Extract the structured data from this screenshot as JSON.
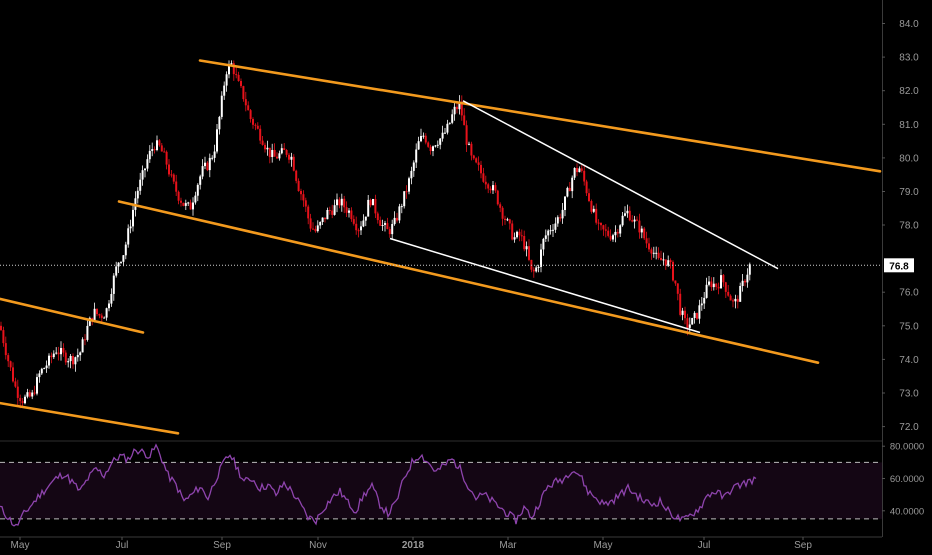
{
  "colors": {
    "background": "#000000",
    "up_candle": "#ffffff",
    "down_candle": "#e8121b",
    "channel_lines": "#f39a1e",
    "wedge_lines": "#ffffff",
    "rsi_line": "#8e44ad",
    "rsi_band_fill": "#140614",
    "axis_text": "#9a9a9a",
    "price_badge_bg": "#ffffff",
    "price_badge_text": "#000000"
  },
  "chart_data": [
    {
      "type": "candlestick",
      "panel": "price",
      "x_labels": [
        "May",
        "Jul",
        "Sep",
        "Nov",
        "2018",
        "Mar",
        "May",
        "Jul",
        "Sep"
      ],
      "y_ticks": [
        "72.0",
        "73.0",
        "74.0",
        "75.0",
        "76.0",
        "77.0",
        "78.0",
        "79.0",
        "80.0",
        "81.0",
        "82.0",
        "83.0",
        "84.0"
      ],
      "ylim": [
        71.6,
        84.7
      ],
      "last_price": "76.8",
      "price_path": [
        [
          0,
          75.0
        ],
        [
          8,
          74.0
        ],
        [
          16,
          73.1
        ],
        [
          22,
          72.8
        ],
        [
          32,
          72.9
        ],
        [
          40,
          73.6
        ],
        [
          48,
          73.9
        ],
        [
          56,
          74.3
        ],
        [
          64,
          74.1
        ],
        [
          72,
          74.0
        ],
        [
          80,
          74.2
        ],
        [
          88,
          75.0
        ],
        [
          94,
          75.4
        ],
        [
          100,
          75.3
        ],
        [
          106,
          75.4
        ],
        [
          112,
          76.2
        ],
        [
          118,
          76.9
        ],
        [
          124,
          77.2
        ],
        [
          130,
          78.0
        ],
        [
          136,
          78.9
        ],
        [
          142,
          79.4
        ],
        [
          148,
          80.0
        ],
        [
          154,
          80.4
        ],
        [
          160,
          80.3
        ],
        [
          166,
          79.9
        ],
        [
          172,
          79.3
        ],
        [
          178,
          78.9
        ],
        [
          184,
          78.6
        ],
        [
          190,
          78.5
        ],
        [
          196,
          79.1
        ],
        [
          202,
          79.6
        ],
        [
          208,
          79.8
        ],
        [
          214,
          80.2
        ],
        [
          220,
          81.3
        ],
        [
          226,
          82.6
        ],
        [
          232,
          82.8
        ],
        [
          238,
          82.2
        ],
        [
          244,
          81.8
        ],
        [
          250,
          81.2
        ],
        [
          256,
          80.9
        ],
        [
          262,
          80.6
        ],
        [
          268,
          80.2
        ],
        [
          274,
          80.0
        ],
        [
          280,
          80.1
        ],
        [
          286,
          80.2
        ],
        [
          292,
          80.0
        ],
        [
          298,
          79.2
        ],
        [
          304,
          78.7
        ],
        [
          310,
          78.0
        ],
        [
          316,
          77.8
        ],
        [
          322,
          78.1
        ],
        [
          328,
          78.4
        ],
        [
          334,
          78.5
        ],
        [
          340,
          78.7
        ],
        [
          346,
          78.5
        ],
        [
          352,
          78.3
        ],
        [
          358,
          77.9
        ],
        [
          364,
          78.2
        ],
        [
          370,
          78.8
        ],
        [
          376,
          78.4
        ],
        [
          382,
          78.0
        ],
        [
          388,
          77.8
        ],
        [
          394,
          78.0
        ],
        [
          400,
          78.5
        ],
        [
          406,
          79.0
        ],
        [
          412,
          79.6
        ],
        [
          418,
          80.4
        ],
        [
          424,
          80.7
        ],
        [
          430,
          80.3
        ],
        [
          436,
          80.5
        ],
        [
          442,
          80.6
        ],
        [
          448,
          80.9
        ],
        [
          454,
          81.4
        ],
        [
          460,
          81.6
        ],
        [
          466,
          80.6
        ],
        [
          472,
          79.9
        ],
        [
          478,
          79.7
        ],
        [
          484,
          79.4
        ],
        [
          490,
          79.2
        ],
        [
          496,
          78.9
        ],
        [
          502,
          78.4
        ],
        [
          508,
          78.0
        ],
        [
          514,
          77.6
        ],
        [
          520,
          77.7
        ],
        [
          526,
          77.3
        ],
        [
          532,
          76.5
        ],
        [
          538,
          76.8
        ],
        [
          544,
          77.6
        ],
        [
          550,
          77.9
        ],
        [
          556,
          78.1
        ],
        [
          562,
          78.4
        ],
        [
          568,
          79.0
        ],
        [
          574,
          79.6
        ],
        [
          580,
          79.7
        ],
        [
          586,
          79.1
        ],
        [
          592,
          78.5
        ],
        [
          598,
          77.9
        ],
        [
          604,
          77.8
        ],
        [
          610,
          77.7
        ],
        [
          616,
          77.8
        ],
        [
          622,
          78.2
        ],
        [
          628,
          78.4
        ],
        [
          634,
          78.1
        ],
        [
          640,
          77.9
        ],
        [
          646,
          77.5
        ],
        [
          652,
          77.3
        ],
        [
          658,
          76.9
        ],
        [
          664,
          77.0
        ],
        [
          670,
          76.8
        ],
        [
          676,
          76.2
        ],
        [
          680,
          75.5
        ],
        [
          686,
          75.0
        ],
        [
          692,
          75.1
        ],
        [
          698,
          75.4
        ],
        [
          704,
          75.9
        ],
        [
          710,
          76.3
        ],
        [
          716,
          76.2
        ],
        [
          722,
          76.4
        ],
        [
          728,
          76.0
        ],
        [
          734,
          75.6
        ],
        [
          740,
          76.0
        ],
        [
          746,
          76.5
        ],
        [
          750,
          76.8
        ]
      ],
      "channel_lines": [
        [
          [
            200,
            82.9
          ],
          [
            880,
            79.6
          ]
        ],
        [
          [
            119,
            78.7
          ],
          [
            818,
            73.9
          ]
        ],
        [
          [
            0,
            75.8
          ],
          [
            143,
            74.8
          ]
        ],
        [
          [
            0,
            72.7
          ],
          [
            178,
            71.8
          ]
        ]
      ],
      "wedge_lines": [
        [
          [
            463,
            81.7
          ],
          [
            778,
            76.7
          ]
        ],
        [
          [
            390,
            77.6
          ],
          [
            700,
            74.8
          ]
        ]
      ]
    },
    {
      "type": "line",
      "panel": "rsi",
      "y_ticks": [
        "40.0000",
        "60.0000",
        "80.0000"
      ],
      "ylim": [
        25,
        82
      ],
      "band": [
        35,
        70
      ],
      "rsi_path": [
        [
          0,
          42
        ],
        [
          8,
          36
        ],
        [
          16,
          30
        ],
        [
          24,
          38
        ],
        [
          32,
          44
        ],
        [
          40,
          50
        ],
        [
          48,
          55
        ],
        [
          56,
          60
        ],
        [
          64,
          63
        ],
        [
          72,
          58
        ],
        [
          80,
          52
        ],
        [
          88,
          60
        ],
        [
          96,
          66
        ],
        [
          104,
          62
        ],
        [
          112,
          70
        ],
        [
          120,
          74
        ],
        [
          128,
          72
        ],
        [
          136,
          78
        ],
        [
          144,
          76
        ],
        [
          150,
          74
        ],
        [
          156,
          80
        ],
        [
          162,
          72
        ],
        [
          168,
          62
        ],
        [
          176,
          56
        ],
        [
          184,
          46
        ],
        [
          192,
          50
        ],
        [
          200,
          55
        ],
        [
          208,
          48
        ],
        [
          216,
          60
        ],
        [
          224,
          70
        ],
        [
          230,
          75
        ],
        [
          236,
          68
        ],
        [
          244,
          58
        ],
        [
          252,
          60
        ],
        [
          260,
          54
        ],
        [
          268,
          56
        ],
        [
          276,
          50
        ],
        [
          284,
          57
        ],
        [
          292,
          52
        ],
        [
          300,
          44
        ],
        [
          308,
          36
        ],
        [
          316,
          34
        ],
        [
          324,
          42
        ],
        [
          332,
          48
        ],
        [
          340,
          52
        ],
        [
          348,
          45
        ],
        [
          356,
          40
        ],
        [
          364,
          50
        ],
        [
          372,
          55
        ],
        [
          380,
          44
        ],
        [
          388,
          38
        ],
        [
          396,
          45
        ],
        [
          404,
          60
        ],
        [
          412,
          70
        ],
        [
          420,
          75
        ],
        [
          428,
          70
        ],
        [
          436,
          64
        ],
        [
          444,
          68
        ],
        [
          452,
          72
        ],
        [
          460,
          66
        ],
        [
          468,
          56
        ],
        [
          476,
          48
        ],
        [
          484,
          50
        ],
        [
          492,
          46
        ],
        [
          500,
          42
        ],
        [
          508,
          38
        ],
        [
          516,
          34
        ],
        [
          524,
          42
        ],
        [
          532,
          36
        ],
        [
          540,
          46
        ],
        [
          548,
          55
        ],
        [
          556,
          58
        ],
        [
          564,
          60
        ],
        [
          572,
          66
        ],
        [
          580,
          62
        ],
        [
          588,
          52
        ],
        [
          596,
          48
        ],
        [
          604,
          44
        ],
        [
          612,
          46
        ],
        [
          620,
          50
        ],
        [
          628,
          54
        ],
        [
          636,
          50
        ],
        [
          644,
          46
        ],
        [
          652,
          44
        ],
        [
          660,
          46
        ],
        [
          668,
          40
        ],
        [
          676,
          36
        ],
        [
          684,
          34
        ],
        [
          692,
          38
        ],
        [
          700,
          42
        ],
        [
          708,
          50
        ],
        [
          716,
          52
        ],
        [
          724,
          48
        ],
        [
          732,
          54
        ],
        [
          740,
          56
        ],
        [
          748,
          58
        ],
        [
          756,
          60
        ]
      ]
    }
  ]
}
